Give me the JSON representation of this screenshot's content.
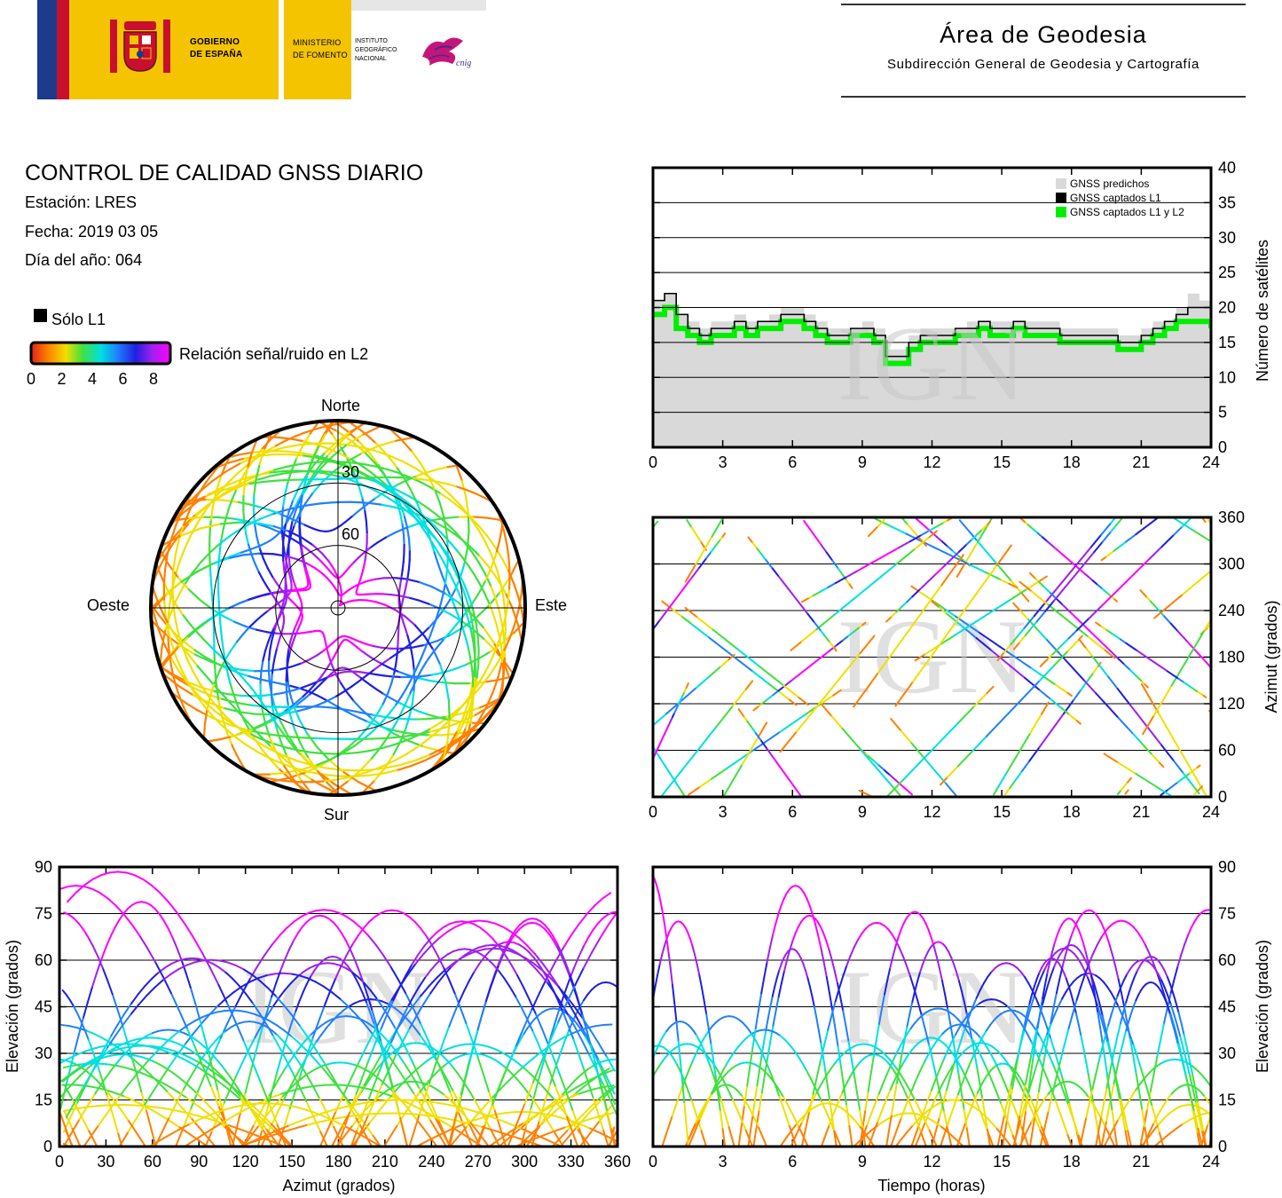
{
  "header": {
    "gobierno_label": "GOBIERNO\nDE ESPAÑA",
    "gobierno_line1": "GOBIERNO",
    "gobierno_line2": "DE ESPAÑA",
    "ministerio_line1": "MINISTERIO",
    "ministerio_line2": "DE FOMENTO",
    "instituto_line1": "INSTITUTO",
    "instituto_line2": "GEOGRÁFICO",
    "instituto_line3": "NACIONAL",
    "cnig_label": "cnig",
    "area_title": "Área de Geodesia",
    "area_subtitle": "Subdirección General de Geodesia y Cartografía"
  },
  "report": {
    "title": "CONTROL DE CALIDAD GNSS DIARIO",
    "station": "Estación: LRES",
    "date": "Fecha: 2019 03 05",
    "doy": "Día del año: 064"
  },
  "colors": {
    "solo_l1": "#000000",
    "predicted": "#d9d9d9",
    "l1_l2": "#00ee00",
    "snr_scale": [
      "#e0201a",
      "#ff8000",
      "#f0e000",
      "#40e040",
      "#00e0e0",
      "#2080ff",
      "#2020e0",
      "#a020f0",
      "#ff00ff"
    ]
  },
  "legend": {
    "solo_l1": "Sólo L1",
    "snr": "Relación señal/ruido en L2",
    "snr_ticks": [
      "0",
      "2",
      "4",
      "6",
      "8"
    ]
  },
  "watermark": "IGN",
  "chart_data": [
    {
      "id": "skyplot",
      "type": "scatter",
      "title": "",
      "directions": {
        "north": "Norte",
        "south": "Sur",
        "east": "Este",
        "west": "Oeste"
      },
      "elevation_rings": [
        "30",
        "60"
      ],
      "elevation_ring_values": [
        30,
        60
      ],
      "series_note": "",
      "tracks_visible": true
    },
    {
      "id": "num_sats",
      "type": "line",
      "ylabel": "Número de satélites",
      "xlim": [
        0,
        24
      ],
      "ylim": [
        0,
        40
      ],
      "x_ticks": [
        "0",
        "3",
        "6",
        "9",
        "12",
        "15",
        "18",
        "21",
        "24"
      ],
      "y_ticks": [
        "0",
        "5",
        "10",
        "15",
        "20",
        "25",
        "30",
        "35",
        "40"
      ],
      "legend": [
        "GNSS predichos",
        "GNSS captados L1",
        "GNSS captados L1 y L2"
      ],
      "x": [
        0,
        0.5,
        1,
        1.5,
        2,
        2.5,
        3,
        3.5,
        4,
        4.5,
        5,
        5.5,
        6,
        6.5,
        7,
        7.5,
        8,
        8.5,
        9,
        9.5,
        10,
        10.5,
        11,
        11.5,
        12,
        12.5,
        13,
        13.5,
        14,
        14.5,
        15,
        15.5,
        16,
        16.5,
        17,
        17.5,
        18,
        18.5,
        19,
        19.5,
        20,
        20.5,
        21,
        21.5,
        22,
        22.5,
        23,
        23.5,
        24
      ],
      "series": [
        {
          "name": "GNSS predichos",
          "values": [
            21,
            22,
            19,
            18,
            17,
            18,
            18,
            19,
            18,
            18,
            19,
            20,
            20,
            19,
            18,
            17,
            17,
            17,
            18,
            17,
            14,
            14,
            16,
            17,
            17,
            17,
            17,
            18,
            18,
            18,
            18,
            18,
            18,
            18,
            18,
            17,
            17,
            17,
            17,
            17,
            16,
            16,
            17,
            18,
            18,
            20,
            22,
            21,
            20
          ]
        },
        {
          "name": "GNSS captados L1",
          "values": [
            21,
            22,
            19,
            17,
            16,
            17,
            17,
            18,
            17,
            18,
            18,
            19,
            19,
            18,
            17,
            16,
            16,
            17,
            17,
            16,
            13,
            13,
            15,
            16,
            16,
            16,
            17,
            17,
            18,
            17,
            17,
            18,
            17,
            17,
            17,
            16,
            16,
            16,
            16,
            16,
            15,
            15,
            16,
            17,
            18,
            19,
            20,
            20,
            19
          ]
        },
        {
          "name": "GNSS captados L1 y L2",
          "values": [
            19,
            20,
            17,
            16,
            15,
            16,
            16,
            17,
            16,
            17,
            17,
            18,
            18,
            17,
            16,
            15,
            15,
            16,
            16,
            15,
            12,
            12,
            14,
            15,
            15,
            15,
            16,
            16,
            17,
            16,
            16,
            17,
            16,
            16,
            16,
            15,
            15,
            15,
            15,
            15,
            14,
            14,
            15,
            16,
            17,
            18,
            18,
            18,
            17
          ]
        }
      ]
    },
    {
      "id": "azimuth_time",
      "type": "scatter",
      "ylabel": "Azimut (grados)",
      "xlim": [
        0,
        24
      ],
      "ylim": [
        0,
        360
      ],
      "x_ticks": [
        "0",
        "3",
        "6",
        "9",
        "12",
        "15",
        "18",
        "21",
        "24"
      ],
      "y_ticks": [
        "0",
        "60",
        "120",
        "180",
        "240",
        "300",
        "360"
      ]
    },
    {
      "id": "elev_azimuth",
      "type": "scatter",
      "xlabel": "Azimut (grados)",
      "ylabel": "Elevación (grados)",
      "xlim": [
        0,
        360
      ],
      "ylim": [
        0,
        90
      ],
      "x_ticks": [
        "0",
        "30",
        "60",
        "90",
        "120",
        "150",
        "180",
        "210",
        "240",
        "270",
        "300",
        "330",
        "360"
      ],
      "y_ticks": [
        "0",
        "15",
        "30",
        "45",
        "60",
        "75",
        "90"
      ]
    },
    {
      "id": "elev_time",
      "type": "scatter",
      "xlabel": "Tiempo (horas)",
      "ylabel": "Elevación (grados)",
      "xlim": [
        0,
        24
      ],
      "ylim": [
        0,
        90
      ],
      "x_ticks": [
        "0",
        "3",
        "6",
        "9",
        "12",
        "15",
        "18",
        "21",
        "24"
      ],
      "y_ticks": [
        "0",
        "15",
        "30",
        "45",
        "60",
        "75",
        "90"
      ]
    }
  ]
}
